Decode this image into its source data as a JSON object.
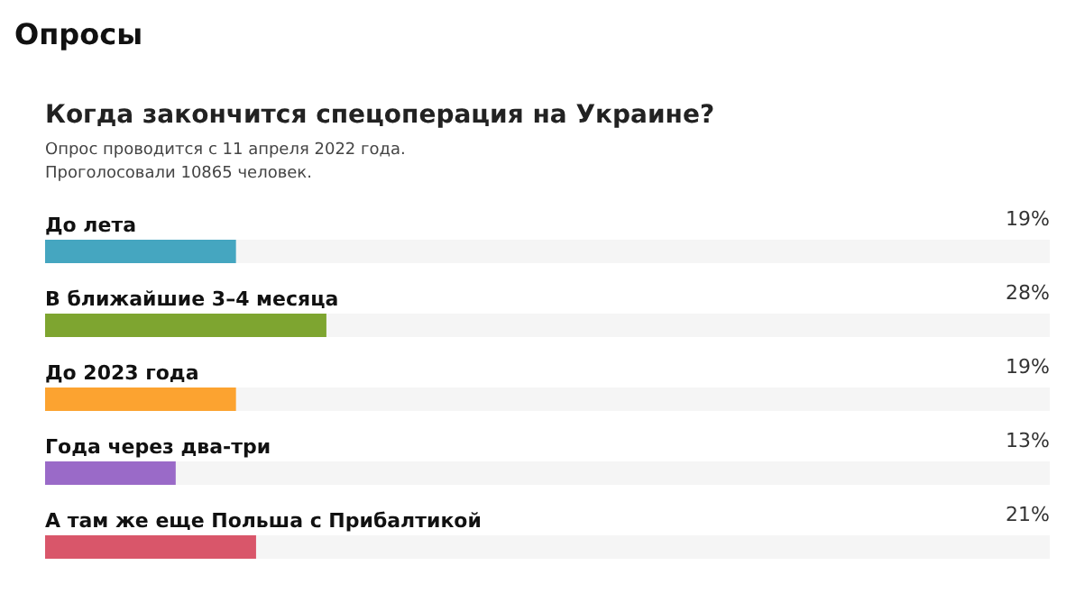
{
  "chart_data": {
    "type": "bar",
    "orientation": "horizontal",
    "title": "Опросы",
    "subtitle": "Когда закончится спецоперация на Украине?",
    "annotations": [
      "Опрос проводится с 11 апреля 2022 года.",
      "Проголосовали 10865 человек."
    ],
    "categories": [
      "До лета",
      "В ближайшие 3–4 месяца",
      "До 2023 года",
      "Года через два-три",
      "А там же еще Польша с Прибалтикой"
    ],
    "values": [
      19,
      28,
      19,
      13,
      21
    ],
    "value_labels": [
      "19%",
      "28%",
      "19%",
      "13%",
      "21%"
    ],
    "colors": [
      "#45a6c0",
      "#7ea530",
      "#fca330",
      "#9a6ac8",
      "#d9566a"
    ],
    "xlim": [
      0,
      100
    ],
    "tick_labels": "y",
    "grid": false
  }
}
